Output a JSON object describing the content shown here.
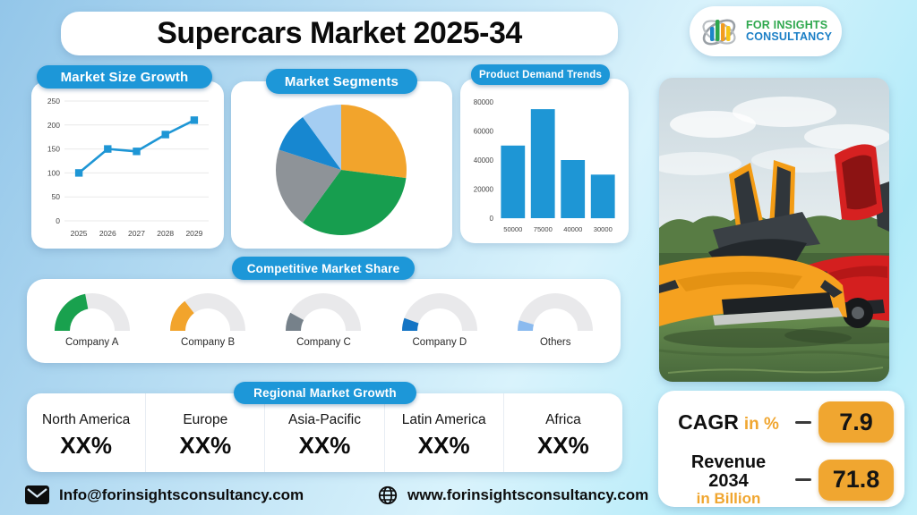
{
  "title": "Supercars Market 2025-34",
  "logo": {
    "line1": "FOR INSIGHTS",
    "line2": "CONSULTANCY"
  },
  "chart_data": [
    {
      "id": "market_size_growth",
      "type": "line",
      "title": "Market Size Growth",
      "x": [
        "2025",
        "2026",
        "2027",
        "2028",
        "2029"
      ],
      "values": [
        100,
        150,
        145,
        180,
        210
      ],
      "ylim": [
        0,
        250
      ],
      "yticks": [
        0,
        50,
        100,
        150,
        200,
        250
      ],
      "line_color": "#1e96d5",
      "marker": "square",
      "grid": true
    },
    {
      "id": "market_segments",
      "type": "pie",
      "title": "Market Segments",
      "slices": [
        {
          "value": 27,
          "color": "#f2a42c"
        },
        {
          "value": 33,
          "color": "#179e4f"
        },
        {
          "value": 20,
          "color": "#8e9398"
        },
        {
          "value": 10,
          "color": "#1787d0"
        },
        {
          "value": 10,
          "color": "#a4cdf2"
        }
      ],
      "start_at_top": true,
      "clockwise": true,
      "legend": "none"
    },
    {
      "id": "product_demand_trends",
      "type": "bar",
      "title": "Product Demand Trends",
      "categories": [
        "50000",
        "75000",
        "40000",
        "30000"
      ],
      "values": [
        50000,
        75000,
        40000,
        30000
      ],
      "ylim": [
        0,
        80000
      ],
      "yticks": [
        0,
        20000,
        40000,
        60000,
        80000
      ],
      "bar_color": "#1e96d5",
      "grid": false
    },
    {
      "id": "competitive_market_share",
      "type": "gauge",
      "title": "Competitive Market Share",
      "track_color": "#e9e9eb",
      "gauges": [
        {
          "label": "Company A",
          "percent": 44,
          "color": "#19a14e"
        },
        {
          "label": "Company B",
          "percent": 29,
          "color": "#f2a42c"
        },
        {
          "label": "Company C",
          "percent": 16,
          "color": "#76818a"
        },
        {
          "label": "Company D",
          "percent": 11,
          "color": "#1374c4"
        },
        {
          "label": "Others",
          "percent": 9,
          "color": "#8abaef"
        }
      ]
    }
  ],
  "regional": {
    "header": "Regional Market Growth",
    "regions": [
      {
        "name": "North America",
        "value": "XX%"
      },
      {
        "name": "Europe",
        "value": "XX%"
      },
      {
        "name": "Asia-Pacific",
        "value": "XX%"
      },
      {
        "name": "Latin America",
        "value": "XX%"
      },
      {
        "name": "Africa",
        "value": "XX%"
      }
    ]
  },
  "stats": {
    "cagr_label": "CAGR",
    "cagr_unit": "in %",
    "cagr_value": "7.9",
    "revenue_label": "Revenue 2034",
    "revenue_unit": "in Billion",
    "revenue_value": "71.8"
  },
  "footer": {
    "email": "Info@forinsightsconsultancy.com",
    "website": "www.forinsightsconsultancy.com"
  },
  "colors": {
    "pill_blue": "#1d97d8",
    "accent_blue": "#1e96d5",
    "accent_orange": "#f0a630",
    "logo_green": "#2fa84e",
    "logo_blue": "#1b7fc6"
  }
}
